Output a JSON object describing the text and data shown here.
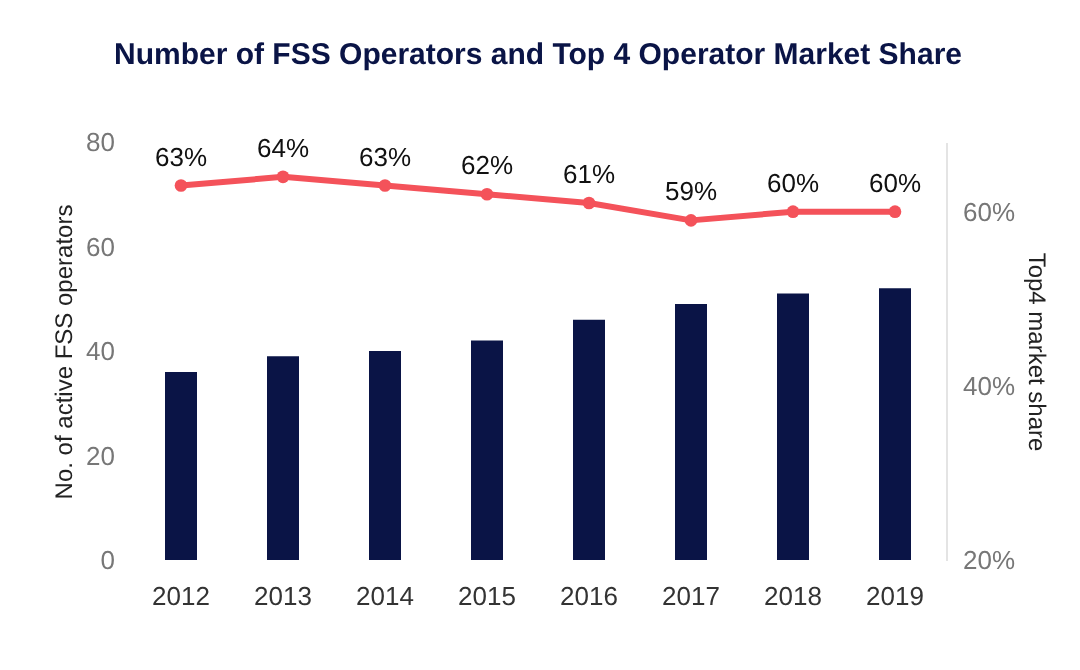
{
  "chart_data": {
    "type": "bar",
    "title": "Number of FSS Operators and Top 4 Operator Market Share",
    "categories": [
      "2012",
      "2013",
      "2014",
      "2015",
      "2016",
      "2017",
      "2018",
      "2019"
    ],
    "ylabel": "No. of active FSS operators",
    "y2label": "Top4 market share",
    "ylim": [
      0,
      80
    ],
    "yticks": [
      0,
      20,
      40,
      60,
      80
    ],
    "y2lim": [
      20,
      68
    ],
    "y2ticks": [
      {
        "value": 20,
        "label": "20%"
      },
      {
        "value": 40,
        "label": "40%"
      },
      {
        "value": 60,
        "label": "60%"
      }
    ],
    "grid": false,
    "series": [
      {
        "color": "#0a1446",
        "values": [
          36,
          39,
          40,
          42,
          46,
          49,
          51,
          52
        ]
      },
      {
        "type": "line",
        "axis": "y2",
        "color": "#f4525a",
        "marker": "circle",
        "values": [
          63,
          64,
          63,
          62,
          61,
          59,
          60,
          60
        ],
        "value_labels": [
          "63%",
          "64%",
          "63%",
          "62%",
          "61%",
          "59%",
          "60%",
          "60%"
        ]
      }
    ]
  }
}
